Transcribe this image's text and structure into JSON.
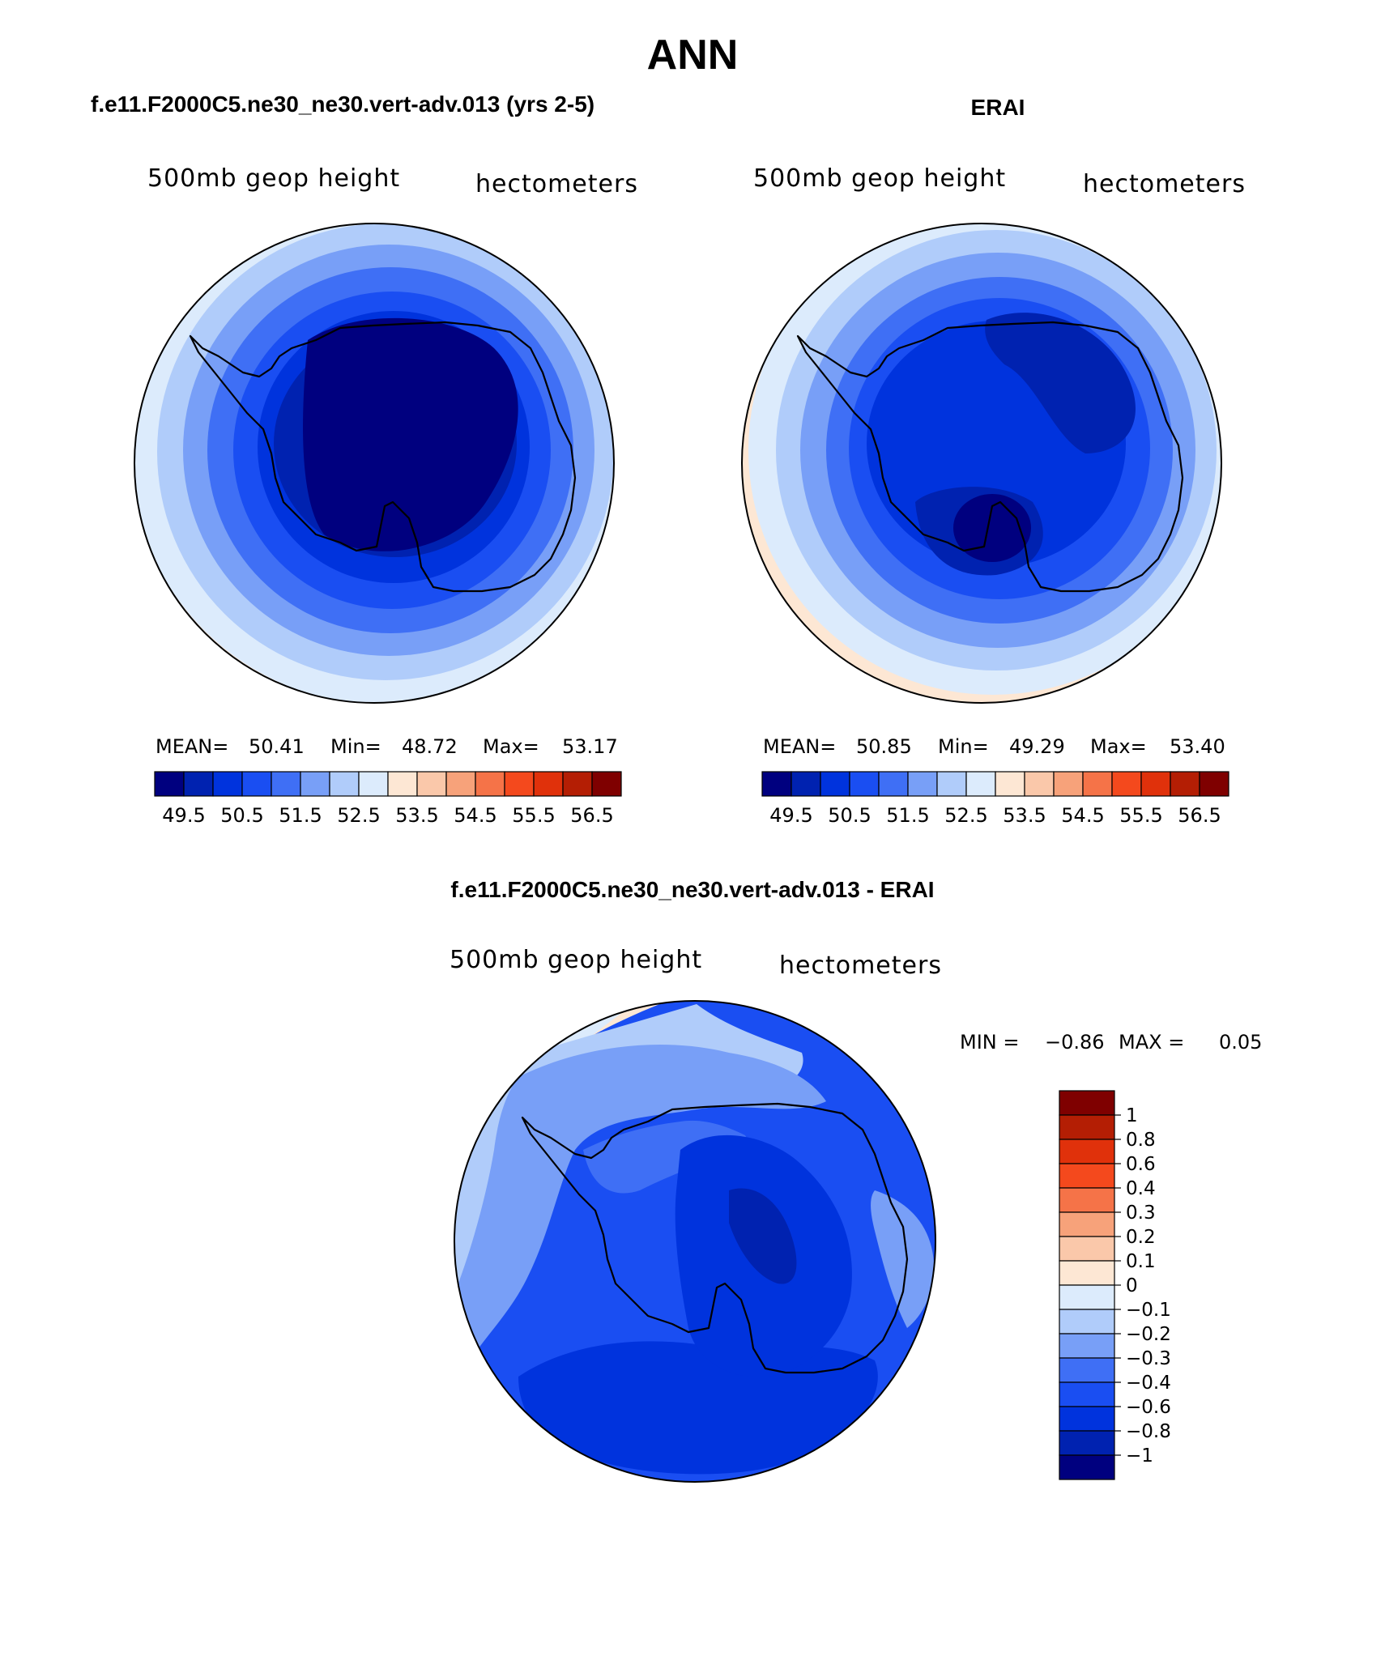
{
  "title": "ANN",
  "panels": [
    {
      "id": "model",
      "heading": "f.e11.F2000C5.ne30_ne30.vert-adv.013 (yrs 2-5)",
      "variable": "500mb geop height",
      "units": "hectometers",
      "stats": {
        "mean_label": "MEAN=",
        "mean": "50.41",
        "min_label": "Min=",
        "min": "48.72",
        "max_label": "Max=",
        "max": "53.17"
      }
    },
    {
      "id": "obs",
      "heading": "ERAI",
      "variable": "500mb geop height",
      "units": "hectometers",
      "stats": {
        "mean_label": "MEAN=",
        "mean": "50.85",
        "min_label": "Min=",
        "min": "49.29",
        "max_label": "Max=",
        "max": "53.40"
      }
    },
    {
      "id": "diff",
      "heading": "f.e11.F2000C5.ne30_ne30.vert-adv.013 - ERAI",
      "variable": "500mb geop height",
      "units": "hectometers",
      "stats": {
        "min_label": "MIN =",
        "min": "−0.86",
        "max_label": "MAX =",
        "max": "0.05"
      }
    }
  ],
  "abs_colorbar": {
    "colors": [
      "#00007f",
      "#0022b0",
      "#0033dd",
      "#1a4ef2",
      "#3f6ff5",
      "#789ff7",
      "#b0ccfa",
      "#dcebfc",
      "#fde7d4",
      "#fac8aa",
      "#f7a27a",
      "#f57348",
      "#f4491d",
      "#e0310b",
      "#b41e04",
      "#7f0000"
    ],
    "labels": [
      "49.5",
      "50.5",
      "51.5",
      "52.5",
      "53.5",
      "54.5",
      "55.5",
      "56.5"
    ]
  },
  "diff_colorbar": {
    "colors": [
      "#7f0000",
      "#b41e04",
      "#e0310b",
      "#f4491d",
      "#f57348",
      "#f7a27a",
      "#fac8aa",
      "#fde7d4",
      "#dcebfc",
      "#b0ccfa",
      "#789ff7",
      "#3f6ff5",
      "#1a4ef2",
      "#0033dd",
      "#0022b0",
      "#00007f"
    ],
    "labels": [
      "1",
      "0.8",
      "0.6",
      "0.4",
      "0.3",
      "0.2",
      "0.1",
      "0",
      "−0.1",
      "−0.2",
      "−0.3",
      "−0.4",
      "−0.6",
      "−0.8",
      "−1"
    ]
  }
}
